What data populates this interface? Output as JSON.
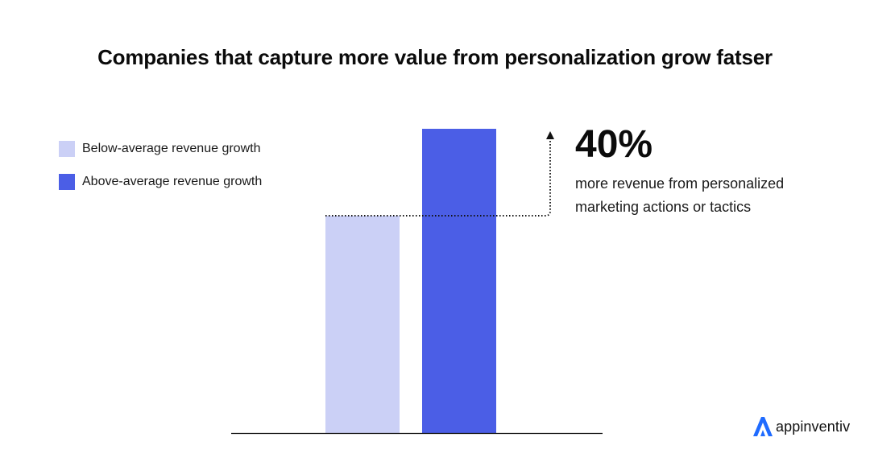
{
  "chart_data": {
    "type": "bar",
    "title": "Companies that capture more value from personalization grow fatser",
    "xlabel": "",
    "ylabel": "",
    "categories": [
      "Below-average revenue growth",
      "Above-average revenue growth"
    ],
    "values": [
      100,
      140
    ],
    "ylim": [
      0,
      150
    ],
    "grid": false,
    "legend_position": "left",
    "legend": [
      {
        "label": "Below-average revenue growth",
        "color": "#cbd0f6"
      },
      {
        "label": "Above-average revenue growth",
        "color": "#4b5ee6"
      }
    ],
    "colors": [
      "#cbd0f6",
      "#4b5ee6"
    ],
    "annotation": {
      "value": "40%",
      "text_line1": "more revenue from personalized",
      "text_line2": "marketing actions or tactics"
    }
  },
  "brand": {
    "name": "appinventiv",
    "logo_icon": "appinventiv-logo-icon",
    "color": "#1f6bff"
  }
}
